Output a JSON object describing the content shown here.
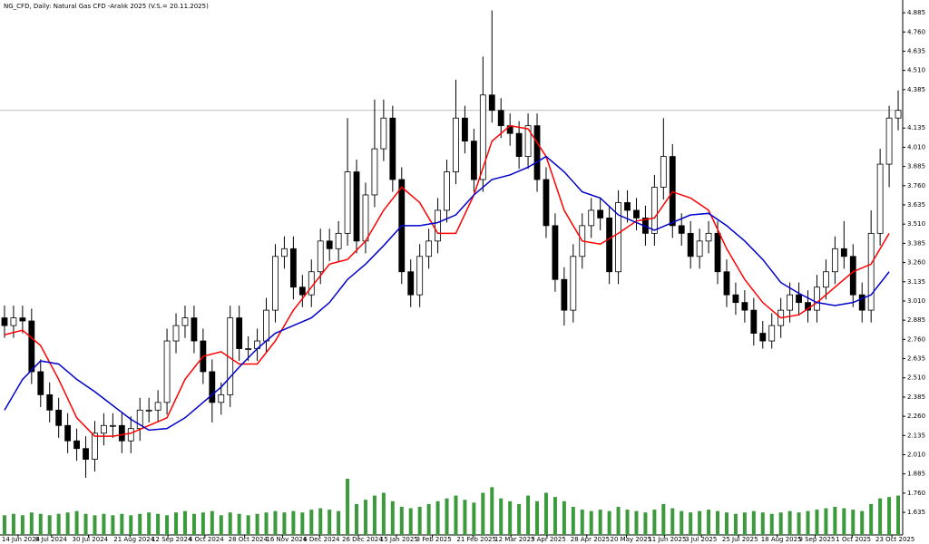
{
  "chart_data": {
    "type": "candlestick",
    "title": "NG_CFD, Daily: Natural Gas CFD -Aralık 2025 (V.S.= 20.11.2025)",
    "up_color": "#ffffff",
    "down_color": "#000000",
    "volume_color": "#3c9a3c",
    "ylim": [
      1.488,
      4.968
    ],
    "yticks": [
      4.885,
      {
        "value": 4.76,
        "label": "4.760"
      },
      4.635,
      {
        "value": 4.51,
        "label": "4.510"
      },
      4.385,
      4.135,
      {
        "value": 4.01,
        "label": "4.010"
      },
      3.885,
      {
        "value": 3.76,
        "label": "3.760"
      },
      3.635,
      {
        "value": 3.51,
        "label": "3.510"
      },
      3.385,
      {
        "value": 3.26,
        "label": "3.260"
      },
      3.135,
      {
        "value": 3.01,
        "label": "3.010"
      },
      2.885,
      {
        "value": 2.76,
        "label": "2.760"
      },
      2.635,
      {
        "value": 2.51,
        "label": "2.510"
      },
      2.385,
      {
        "value": 2.26,
        "label": "2.260"
      },
      2.135,
      {
        "value": 2.01,
        "label": "2.010"
      },
      1.885,
      {
        "value": 1.76,
        "label": "1.760"
      },
      1.635
    ],
    "xticks": [
      {
        "value": 1.5,
        "label": "14 Jun 2024"
      },
      {
        "value": 5.2,
        "label": "8 Jul 2024"
      },
      {
        "value": 9.3,
        "label": "30 Jul 2024"
      },
      {
        "value": 13.9,
        "label": "21 Aug 2024"
      },
      {
        "value": 18.1,
        "label": "12 Sep 2024"
      },
      {
        "value": 22.2,
        "label": "4 Oct 2024"
      },
      {
        "value": 26.6,
        "label": "28 Oct 2024"
      },
      {
        "value": 30.8,
        "label": "16 Nov 2024"
      },
      {
        "value": 34.9,
        "label": "6 Dec 2024"
      },
      {
        "value": 39.2,
        "label": "26 Dec 2024"
      },
      {
        "value": 43.4,
        "label": "15 Jan 2025"
      },
      {
        "value": 47.4,
        "label": "3 Feb 2025"
      },
      {
        "value": 51.9,
        "label": "21 Feb 2025"
      },
      {
        "value": 56.1,
        "label": "12 Mar 2025"
      },
      {
        "value": 60.1,
        "label": "3 Apr 2025"
      },
      {
        "value": 64.5,
        "label": "28 Apr 2025"
      },
      {
        "value": 68.9,
        "label": "20 May 2025"
      },
      {
        "value": 73.1,
        "label": "11 Jun 2025"
      },
      {
        "value": 77.2,
        "label": "3 Jul 2025"
      },
      {
        "value": 81.3,
        "label": "25 Jul 2025"
      },
      {
        "value": 85.6,
        "label": "18 Aug 2025"
      },
      {
        "value": 89.8,
        "label": "9 Sep 2025"
      },
      {
        "value": 93.9,
        "label": "1 Oct 2025"
      },
      {
        "value": 98.3,
        "label": "23 Oct 2025"
      }
    ],
    "current_price": 4.25,
    "open": [
      2.9,
      2.85,
      2.9,
      2.88,
      2.55,
      2.4,
      2.3,
      2.2,
      2.1,
      2.05,
      1.98,
      2.15,
      2.2,
      2.2,
      2.1,
      2.18,
      2.3,
      2.3,
      2.35,
      2.75,
      2.85,
      2.9,
      2.75,
      2.55,
      2.35,
      2.4,
      2.9,
      2.7,
      2.7,
      2.75,
      2.95,
      3.3,
      3.35,
      3.1,
      3.05,
      3.2,
      3.4,
      3.35,
      3.45,
      3.85,
      3.4,
      3.7,
      4.0,
      4.2,
      3.8,
      3.2,
      3.05,
      3.3,
      3.4,
      3.6,
      3.85,
      4.2,
      4.05,
      3.8,
      4.35,
      4.25,
      4.15,
      4.1,
      3.95,
      4.15,
      3.8,
      3.5,
      3.15,
      2.95,
      3.3,
      3.5,
      3.6,
      3.55,
      3.2,
      3.65,
      3.6,
      3.55,
      3.45,
      3.75,
      3.95,
      3.5,
      3.45,
      3.3,
      3.4,
      3.45,
      3.2,
      3.05,
      3.0,
      2.95,
      2.8,
      2.75,
      2.85,
      2.95,
      3.05,
      3.0,
      2.95,
      3.1,
      3.2,
      3.35,
      3.3,
      3.05,
      2.95,
      3.45,
      3.9,
      4.2
    ],
    "high": [
      2.98,
      2.98,
      2.98,
      2.96,
      2.63,
      2.48,
      2.38,
      2.28,
      2.18,
      2.13,
      2.23,
      2.28,
      2.28,
      2.28,
      2.26,
      2.38,
      2.38,
      2.43,
      2.83,
      2.93,
      2.98,
      2.98,
      2.83,
      2.63,
      2.48,
      2.98,
      2.98,
      2.78,
      2.83,
      3.03,
      3.38,
      3.43,
      3.43,
      3.18,
      3.28,
      3.48,
      3.48,
      3.53,
      4.2,
      3.93,
      3.78,
      4.32,
      4.32,
      4.28,
      3.88,
      3.28,
      3.38,
      3.48,
      3.68,
      3.93,
      4.45,
      4.28,
      4.13,
      4.6,
      4.9,
      4.33,
      4.23,
      4.18,
      4.23,
      4.23,
      3.88,
      3.58,
      3.23,
      3.38,
      3.58,
      3.68,
      3.68,
      3.63,
      3.73,
      3.73,
      3.68,
      3.63,
      3.83,
      4.2,
      4.03,
      3.58,
      3.53,
      3.48,
      3.53,
      3.53,
      3.28,
      3.13,
      3.08,
      3.03,
      2.88,
      2.93,
      3.03,
      3.13,
      3.13,
      3.08,
      3.18,
      3.28,
      3.43,
      3.53,
      3.38,
      3.13,
      3.6,
      4.0,
      4.28,
      4.38
    ],
    "low": [
      2.77,
      2.77,
      2.8,
      2.47,
      2.32,
      2.22,
      2.12,
      2.02,
      1.97,
      1.86,
      1.9,
      2.07,
      2.12,
      2.02,
      2.02,
      2.1,
      2.22,
      2.22,
      2.27,
      2.67,
      2.77,
      2.67,
      2.47,
      2.22,
      2.27,
      2.32,
      2.62,
      2.62,
      2.62,
      2.67,
      2.87,
      3.22,
      3.02,
      2.97,
      2.97,
      3.12,
      3.27,
      3.27,
      3.37,
      3.32,
      3.32,
      3.62,
      3.92,
      3.72,
      3.12,
      2.97,
      2.97,
      3.22,
      3.32,
      3.52,
      3.77,
      3.97,
      3.72,
      3.72,
      4.17,
      4.07,
      4.02,
      3.87,
      3.87,
      3.72,
      3.42,
      3.07,
      2.85,
      2.87,
      3.22,
      3.42,
      3.47,
      3.12,
      3.12,
      3.52,
      3.47,
      3.37,
      3.37,
      3.67,
      3.42,
      3.37,
      3.22,
      3.22,
      3.32,
      3.12,
      2.97,
      2.92,
      2.87,
      2.72,
      2.7,
      2.7,
      2.77,
      2.87,
      2.92,
      2.87,
      2.87,
      3.02,
      3.12,
      3.22,
      2.97,
      2.87,
      2.87,
      3.37,
      3.75,
      4.12
    ],
    "close": [
      2.85,
      2.9,
      2.88,
      2.55,
      2.4,
      2.3,
      2.2,
      2.1,
      2.05,
      1.98,
      2.15,
      2.2,
      2.2,
      2.1,
      2.18,
      2.3,
      2.3,
      2.35,
      2.75,
      2.85,
      2.9,
      2.75,
      2.55,
      2.35,
      2.4,
      2.9,
      2.7,
      2.7,
      2.75,
      2.95,
      3.3,
      3.35,
      3.1,
      3.05,
      3.2,
      3.4,
      3.35,
      3.45,
      3.85,
      3.4,
      3.7,
      4.0,
      4.2,
      3.8,
      3.2,
      3.05,
      3.3,
      3.4,
      3.6,
      3.85,
      4.2,
      4.05,
      3.8,
      4.35,
      4.25,
      4.15,
      4.1,
      3.95,
      4.15,
      3.8,
      3.5,
      3.15,
      2.95,
      3.3,
      3.5,
      3.6,
      3.55,
      3.2,
      3.65,
      3.6,
      3.55,
      3.45,
      3.75,
      3.95,
      3.5,
      3.45,
      3.3,
      3.4,
      3.45,
      3.2,
      3.05,
      3.0,
      2.95,
      2.8,
      2.75,
      2.85,
      2.95,
      3.05,
      3.0,
      2.95,
      3.1,
      3.2,
      3.35,
      3.3,
      3.05,
      2.95,
      3.45,
      3.9,
      4.2,
      4.25
    ],
    "volume": [
      14,
      15,
      14,
      16,
      15,
      14,
      15,
      16,
      17,
      15,
      14,
      15,
      14,
      15,
      14,
      15,
      16,
      15,
      14,
      16,
      17,
      15,
      16,
      17,
      14,
      16,
      15,
      14,
      15,
      16,
      17,
      16,
      17,
      16,
      18,
      19,
      18,
      17,
      40,
      22,
      25,
      28,
      30,
      24,
      20,
      19,
      20,
      22,
      24,
      26,
      28,
      25,
      23,
      30,
      34,
      26,
      24,
      22,
      28,
      24,
      30,
      27,
      24,
      20,
      18,
      17,
      18,
      17,
      20,
      18,
      17,
      16,
      18,
      22,
      19,
      17,
      16,
      17,
      18,
      17,
      16,
      15,
      16,
      17,
      16,
      15,
      16,
      17,
      16,
      17,
      18,
      19,
      20,
      19,
      18,
      17,
      22,
      26,
      27,
      28
    ],
    "series": [
      {
        "name": "MA fast",
        "color": "#ff0000",
        "x": [
          0,
          2,
          4,
          6,
          8,
          10,
          12,
          14,
          16,
          18,
          20,
          22,
          24,
          26,
          28,
          30,
          32,
          34,
          36,
          38,
          40,
          42,
          44,
          46,
          48,
          50,
          52,
          54,
          56,
          58,
          60,
          62,
          64,
          66,
          68,
          70,
          72,
          74,
          76,
          78,
          80,
          82,
          84,
          86,
          88,
          90,
          92,
          94,
          96,
          98
        ],
        "values": [
          2.79,
          2.82,
          2.72,
          2.5,
          2.25,
          2.13,
          2.13,
          2.15,
          2.2,
          2.25,
          2.5,
          2.65,
          2.68,
          2.6,
          2.6,
          2.75,
          2.95,
          3.1,
          3.25,
          3.28,
          3.4,
          3.6,
          3.75,
          3.65,
          3.45,
          3.45,
          3.7,
          4.05,
          4.15,
          4.13,
          3.95,
          3.6,
          3.4,
          3.38,
          3.45,
          3.53,
          3.55,
          3.72,
          3.68,
          3.6,
          3.35,
          3.15,
          3.0,
          2.9,
          2.92,
          3.0,
          3.1,
          3.2,
          3.25,
          3.45
        ]
      },
      {
        "name": "MA slow",
        "color": "#0000cc",
        "x": [
          0,
          2,
          4,
          6,
          8,
          10,
          12,
          14,
          16,
          18,
          20,
          22,
          24,
          26,
          28,
          30,
          32,
          34,
          36,
          38,
          40,
          42,
          44,
          46,
          48,
          50,
          52,
          54,
          56,
          58,
          60,
          62,
          64,
          66,
          68,
          70,
          72,
          74,
          76,
          78,
          80,
          82,
          84,
          86,
          88,
          90,
          92,
          94,
          96,
          98
        ],
        "values": [
          2.3,
          2.5,
          2.62,
          2.6,
          2.5,
          2.42,
          2.33,
          2.24,
          2.17,
          2.18,
          2.25,
          2.35,
          2.45,
          2.58,
          2.7,
          2.8,
          2.85,
          2.9,
          3.0,
          3.15,
          3.25,
          3.37,
          3.5,
          3.5,
          3.52,
          3.57,
          3.7,
          3.8,
          3.83,
          3.88,
          3.95,
          3.85,
          3.72,
          3.68,
          3.57,
          3.52,
          3.47,
          3.52,
          3.57,
          3.58,
          3.5,
          3.4,
          3.28,
          3.13,
          3.06,
          3.0,
          2.98,
          3.0,
          3.05,
          3.2
        ]
      }
    ]
  }
}
